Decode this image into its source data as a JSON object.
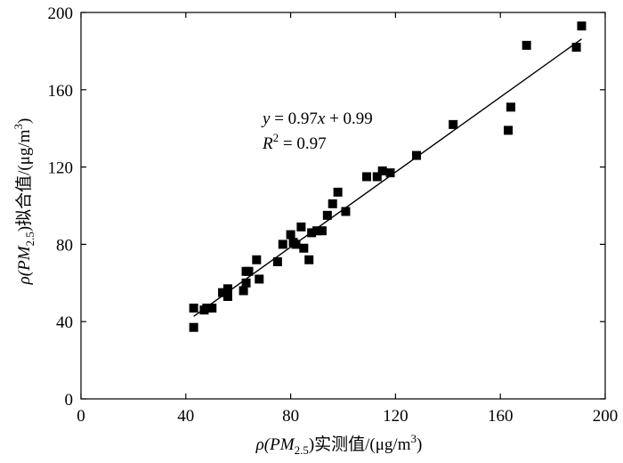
{
  "chart_data": {
    "type": "scatter",
    "xlabel": {
      "pre": "ρ(PM",
      "sub": "2.5",
      "post": ")实测值/(μg/m",
      "sup": "3",
      "end": ")"
    },
    "ylabel": {
      "pre": "ρ(PM",
      "sub": "2.5",
      "post": ")拟合值/(μg/m",
      "sup": "3",
      "end": ")"
    },
    "xlim": [
      0,
      200
    ],
    "ylim": [
      0,
      200
    ],
    "xticks": [
      0,
      40,
      80,
      120,
      160,
      200
    ],
    "yticks": [
      0,
      40,
      80,
      120,
      160,
      200
    ],
    "fit": {
      "slope": 0.97,
      "intercept": 0.99,
      "x_range": [
        43,
        191
      ]
    },
    "equation": {
      "y": "y",
      "eq_mid": " = 0.97",
      "x": "x",
      "eq_end": " + 0.99",
      "r": "R",
      "r_sup": "2",
      "r_val": " = 0.97"
    },
    "points": [
      [
        43,
        47
      ],
      [
        43,
        37
      ],
      [
        47,
        46
      ],
      [
        48,
        47
      ],
      [
        50,
        47
      ],
      [
        54,
        55
      ],
      [
        56,
        57
      ],
      [
        56,
        53
      ],
      [
        62,
        56
      ],
      [
        63,
        66
      ],
      [
        63,
        60
      ],
      [
        64,
        66
      ],
      [
        67,
        72
      ],
      [
        68,
        62
      ],
      [
        75,
        71
      ],
      [
        77,
        80
      ],
      [
        80,
        85
      ],
      [
        81,
        81
      ],
      [
        82,
        80
      ],
      [
        84,
        89
      ],
      [
        85,
        78
      ],
      [
        87,
        72
      ],
      [
        88,
        86
      ],
      [
        90,
        87
      ],
      [
        92,
        87
      ],
      [
        94,
        95
      ],
      [
        96,
        101
      ],
      [
        98,
        107
      ],
      [
        101,
        97
      ],
      [
        109,
        115
      ],
      [
        113,
        115
      ],
      [
        115,
        118
      ],
      [
        118,
        117
      ],
      [
        128,
        126
      ],
      [
        142,
        142
      ],
      [
        163,
        139
      ],
      [
        164,
        151
      ],
      [
        170,
        183
      ],
      [
        189,
        182
      ],
      [
        191,
        193
      ]
    ]
  }
}
